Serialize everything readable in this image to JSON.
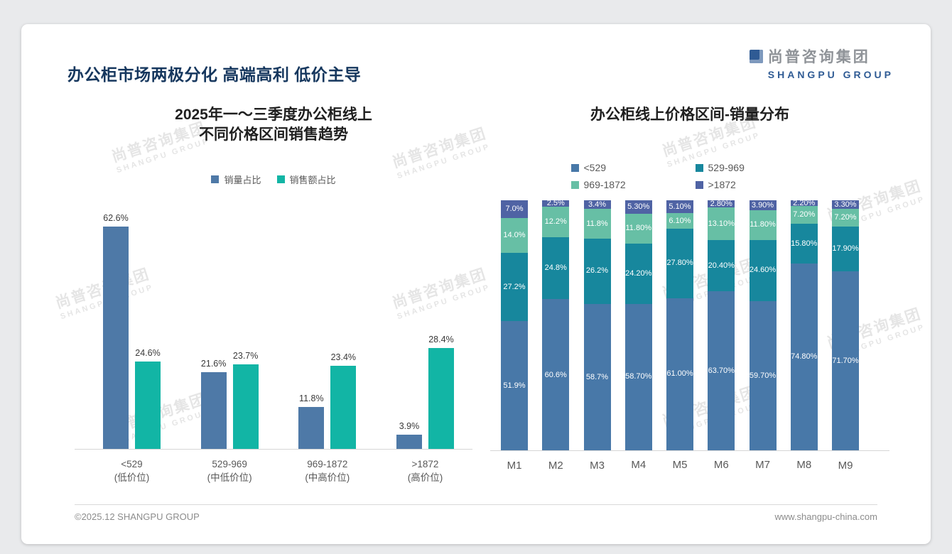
{
  "header": {
    "title": "办公柜市场两极分化 高端高利 低价主导",
    "logo": {
      "cn": "尚普咨询集团",
      "en": "SHANGPU GROUP"
    }
  },
  "watermark": {
    "line1": "尚普咨询集团",
    "line2": "SHANGPU GROUP"
  },
  "footer": {
    "left": "©2025.12 SHANGPU GROUP",
    "right": "www.shangpu-china.com"
  },
  "chart_data": [
    {
      "type": "bar",
      "title_lines": [
        "2025年一～三季度办公柜线上",
        "不同价格区间销售趋势"
      ],
      "categories": [
        "<529",
        "529-969",
        "969-1872",
        ">1872"
      ],
      "category_sublabels": [
        "(低价位)",
        "(中低价位)",
        "(中高价位)",
        "(高价位)"
      ],
      "ylabel": "",
      "ylim": [
        0,
        70
      ],
      "grid": false,
      "legend_position": "top",
      "series": [
        {
          "name": "销量占比",
          "color": "#4E79A7",
          "values": [
            62.6,
            21.6,
            11.8,
            3.9
          ],
          "labels": [
            "62.6%",
            "21.6%",
            "11.8%",
            "3.9%"
          ]
        },
        {
          "name": "销售额占比",
          "color": "#12B5A5",
          "values": [
            24.6,
            23.7,
            23.4,
            28.4
          ],
          "labels": [
            "24.6%",
            "23.7%",
            "23.4%",
            "28.4%"
          ]
        }
      ]
    },
    {
      "type": "bar",
      "stacked": true,
      "title": "办公柜线上价格区间-销量分布",
      "categories": [
        "M1",
        "M2",
        "M3",
        "M4",
        "M5",
        "M6",
        "M7",
        "M8",
        "M9"
      ],
      "ylim": [
        0,
        100
      ],
      "grid": false,
      "legend_position": "top",
      "series": [
        {
          "name": "<529",
          "color": "#4878A8",
          "values": [
            51.9,
            60.6,
            58.7,
            58.7,
            61.0,
            63.7,
            59.7,
            74.8,
            71.7
          ],
          "labels": [
            "51.9%",
            "60.6%",
            "58.7%",
            "58.70%",
            "61.00%",
            "63.70%",
            "59.70%",
            "74.80%",
            "71.70%"
          ]
        },
        {
          "name": "529-969",
          "color": "#17879D",
          "values": [
            27.2,
            24.8,
            26.2,
            24.2,
            27.8,
            20.4,
            24.6,
            15.8,
            17.9
          ],
          "labels": [
            "27.2%",
            "24.8%",
            "26.2%",
            "24.20%",
            "27.80%",
            "20.40%",
            "24.60%",
            "15.80%",
            "17.90%"
          ]
        },
        {
          "name": "969-1872",
          "color": "#67BFA5",
          "values": [
            14.0,
            12.2,
            11.8,
            11.8,
            6.1,
            13.1,
            11.8,
            7.2,
            7.2
          ],
          "labels": [
            "14.0%",
            "12.2%",
            "11.8%",
            "11.80%",
            "6.10%",
            "13.10%",
            "11.80%",
            "7.20%",
            "7.20%"
          ]
        },
        {
          "name": ">1872",
          "color": "#4F63A4",
          "values": [
            7.0,
            2.5,
            3.4,
            5.3,
            5.1,
            2.8,
            3.9,
            2.2,
            3.3
          ],
          "labels": [
            "7.0%",
            "2.5%",
            "3.4%",
            "5.30%",
            "5.10%",
            "2.80%",
            "3.90%",
            "2.20%",
            "3.30%"
          ]
        }
      ]
    }
  ]
}
